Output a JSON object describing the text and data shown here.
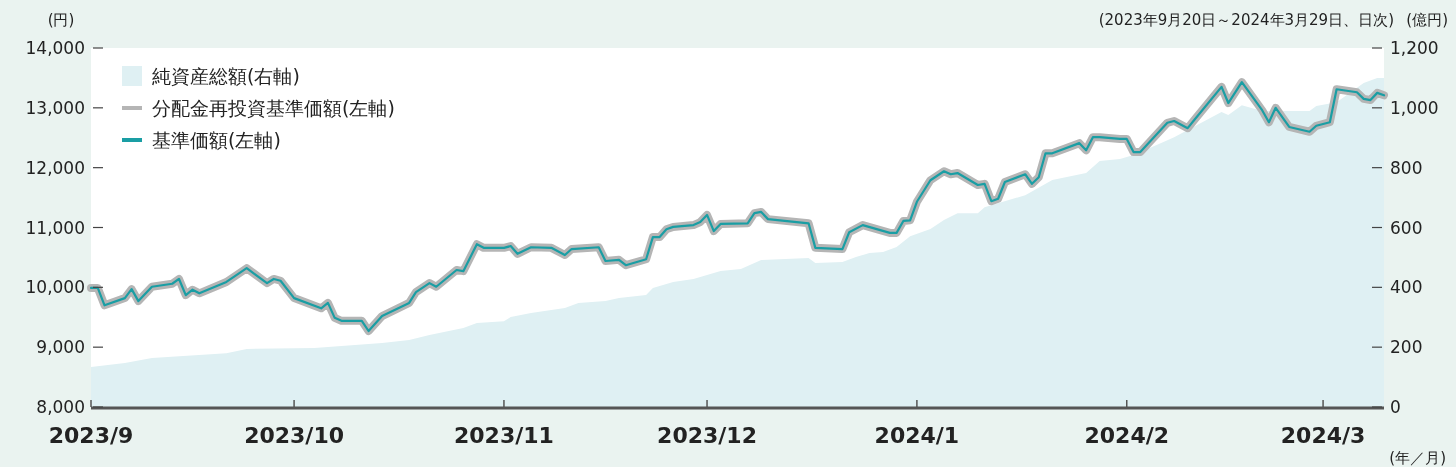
{
  "chart_data": {
    "type": "line",
    "ylabel": "(円)",
    "y2label": "(億円)",
    "xlabel": "(年／月)",
    "annotations": [
      "(2023年9月20日～2024年3月29日、日次)"
    ],
    "xlim": [
      "2023-09-20",
      "2024-03-29"
    ],
    "xticks": [
      {
        "value": "2023-09-20",
        "label": "2023/9"
      },
      {
        "value": "2023-10-20",
        "label": "2023/10"
      },
      {
        "value": "2023-11-20",
        "label": "2023/11"
      },
      {
        "value": "2023-12-20",
        "label": "2023/12"
      },
      {
        "value": "2024-01-20",
        "label": "2024/1"
      },
      {
        "value": "2024-02-20",
        "label": "2024/2"
      },
      {
        "value": "2024-03-20",
        "label": "2024/3"
      }
    ],
    "ylim": [
      8000,
      14000
    ],
    "yticks": [
      {
        "value": 8000,
        "label": "8,000"
      },
      {
        "value": 9000,
        "label": "9,000"
      },
      {
        "value": 10000,
        "label": "10,000"
      },
      {
        "value": 11000,
        "label": "11,000"
      },
      {
        "value": 12000,
        "label": "12,000"
      },
      {
        "value": 13000,
        "label": "13,000"
      },
      {
        "value": 14000,
        "label": "14,000"
      }
    ],
    "y2lim": [
      0,
      1200
    ],
    "y2ticks": [
      0,
      200,
      400,
      600,
      800,
      {
        "value": 1000,
        "label": "1,000"
      },
      {
        "value": 1200,
        "label": "1,200"
      }
    ],
    "legend": "top left",
    "grid": false,
    "series": [
      {
        "name": "純資産総額(右軸)",
        "type": "area",
        "axis": "y2",
        "color": "#dff0f3",
        "x": [
          "2023-09-20",
          "2023-09-25",
          "2023-09-29",
          "2023-10-10",
          "2023-10-13",
          "2023-10-23",
          "2023-11-02",
          "2023-11-06",
          "2023-11-09",
          "2023-11-14",
          "2023-11-16",
          "2023-11-20",
          "2023-11-21",
          "2023-11-24",
          "2023-11-29",
          "2023-12-01",
          "2023-12-05",
          "2023-12-07",
          "2023-12-11",
          "2023-12-12",
          "2023-12-15",
          "2023-12-18",
          "2023-12-20",
          "2023-12-22",
          "2023-12-25",
          "2023-12-28",
          "2024-01-04",
          "2024-01-05",
          "2024-01-09",
          "2024-01-11",
          "2024-01-13",
          "2024-01-15",
          "2024-01-17",
          "2024-01-19",
          "2024-01-22",
          "2024-01-24",
          "2024-01-26",
          "2024-01-29",
          "2024-01-30",
          "2024-02-05",
          "2024-02-09",
          "2024-02-14",
          "2024-02-16",
          "2024-02-19",
          "2024-02-21",
          "2024-02-25",
          "2024-02-27",
          "2024-02-29",
          "2024-03-05",
          "2024-03-06",
          "2024-03-08",
          "2024-03-11",
          "2024-03-14",
          "2024-03-18",
          "2024-03-19",
          "2024-03-22",
          "2024-03-26",
          "2024-03-28",
          "2024-03-29"
        ],
        "values": [
          134,
          147,
          164,
          180,
          194,
          197,
          214,
          224,
          241,
          264,
          281,
          287,
          301,
          314,
          331,
          348,
          354,
          364,
          374,
          398,
          418,
          428,
          441,
          455,
          461,
          491,
          498,
          481,
          485,
          501,
          515,
          518,
          535,
          571,
          595,
          625,
          648,
          648,
          668,
          708,
          759,
          782,
          822,
          829,
          842,
          882,
          902,
          926,
          986,
          976,
          1009,
          989,
          989,
          989,
          1006,
          1019,
          1083,
          1100,
          1100
        ]
      },
      {
        "name": "分配金再投資基準価額(左軸)",
        "color": "#b5b5b5",
        "x": [
          "2023-09-20",
          "2023-09-21",
          "2023-09-22",
          "2023-09-25",
          "2023-09-26",
          "2023-09-27",
          "2023-09-29",
          "2023-10-02",
          "2023-10-03",
          "2023-10-04",
          "2023-10-05",
          "2023-10-06",
          "2023-10-10",
          "2023-10-13",
          "2023-10-16",
          "2023-10-17",
          "2023-10-18",
          "2023-10-20",
          "2023-10-24",
          "2023-10-25",
          "2023-10-26",
          "2023-10-27",
          "2023-10-30",
          "2023-10-31",
          "2023-11-02",
          "2023-11-06",
          "2023-11-07",
          "2023-11-09",
          "2023-11-10",
          "2023-11-13",
          "2023-11-14",
          "2023-11-16",
          "2023-11-17",
          "2023-11-20",
          "2023-11-21",
          "2023-11-22",
          "2023-11-24",
          "2023-11-27",
          "2023-11-29",
          "2023-11-30",
          "2023-12-04",
          "2023-12-05",
          "2023-12-07",
          "2023-12-08",
          "2023-12-11",
          "2023-12-12",
          "2023-12-13",
          "2023-12-14",
          "2023-12-15",
          "2023-12-18",
          "2023-12-19",
          "2023-12-20",
          "2023-12-21",
          "2023-12-22",
          "2023-12-26",
          "2023-12-27",
          "2023-12-28",
          "2023-12-29",
          "2024-01-04",
          "2024-01-05",
          "2024-01-09",
          "2024-01-10",
          "2024-01-12",
          "2024-01-16",
          "2024-01-17",
          "2024-01-18",
          "2024-01-19",
          "2024-01-20",
          "2024-01-22",
          "2024-01-24",
          "2024-01-25",
          "2024-01-26",
          "2024-01-29",
          "2024-01-30",
          "2024-01-31",
          "2024-02-01",
          "2024-02-02",
          "2024-02-05",
          "2024-02-06",
          "2024-02-07",
          "2024-02-08",
          "2024-02-09",
          "2024-02-13",
          "2024-02-14",
          "2024-02-15",
          "2024-02-16",
          "2024-02-19",
          "2024-02-20",
          "2024-02-21",
          "2024-02-22",
          "2024-02-26",
          "2024-02-27",
          "2024-02-29",
          "2024-03-01",
          "2024-03-05",
          "2024-03-06",
          "2024-03-08",
          "2024-03-11",
          "2024-03-12",
          "2024-03-13",
          "2024-03-15",
          "2024-03-18",
          "2024-03-19",
          "2024-03-21",
          "2024-03-22",
          "2024-03-25",
          "2024-03-26",
          "2024-03-27",
          "2024-03-28",
          "2024-03-29"
        ],
        "values": [
          9990,
          9990,
          9700,
          9820,
          9970,
          9770,
          10010,
          10060,
          10140,
          9870,
          9960,
          9900,
          10090,
          10320,
          10070,
          10140,
          10110,
          9820,
          9650,
          9740,
          9490,
          9440,
          9440,
          9270,
          9520,
          9740,
          9920,
          10070,
          10010,
          10290,
          10270,
          10720,
          10660,
          10660,
          10690,
          10560,
          10670,
          10660,
          10540,
          10640,
          10670,
          10440,
          10460,
          10370,
          10470,
          10840,
          10840,
          10970,
          11010,
          11040,
          11090,
          11210,
          10940,
          11060,
          11070,
          11240,
          11260,
          11140,
          11070,
          10660,
          10640,
          10920,
          11040,
          10910,
          10910,
          11110,
          11120,
          11430,
          11790,
          11940,
          11890,
          11910,
          11710,
          11730,
          11440,
          11480,
          11760,
          11890,
          11730,
          11840,
          12240,
          12240,
          12410,
          12290,
          12510,
          12510,
          12480,
          12480,
          12260,
          12260,
          12750,
          12780,
          12660,
          12800,
          13350,
          13080,
          13430,
          12960,
          12760,
          13000,
          12680,
          12600,
          12700,
          12760,
          13310,
          13260,
          13150,
          13130,
          13250,
          13210
        ]
      },
      {
        "name": "基準価額(左軸)",
        "color": "#1a9ea4",
        "x": [
          "2023-09-20",
          "2023-09-21",
          "2023-09-22",
          "2023-09-25",
          "2023-09-26",
          "2023-09-27",
          "2023-09-29",
          "2023-10-02",
          "2023-10-03",
          "2023-10-04",
          "2023-10-05",
          "2023-10-06",
          "2023-10-10",
          "2023-10-13",
          "2023-10-16",
          "2023-10-17",
          "2023-10-18",
          "2023-10-20",
          "2023-10-24",
          "2023-10-25",
          "2023-10-26",
          "2023-10-27",
          "2023-10-30",
          "2023-10-31",
          "2023-11-02",
          "2023-11-06",
          "2023-11-07",
          "2023-11-09",
          "2023-11-10",
          "2023-11-13",
          "2023-11-14",
          "2023-11-16",
          "2023-11-17",
          "2023-11-20",
          "2023-11-21",
          "2023-11-22",
          "2023-11-24",
          "2023-11-27",
          "2023-11-29",
          "2023-11-30",
          "2023-12-04",
          "2023-12-05",
          "2023-12-07",
          "2023-12-08",
          "2023-12-11",
          "2023-12-12",
          "2023-12-13",
          "2023-12-14",
          "2023-12-15",
          "2023-12-18",
          "2023-12-19",
          "2023-12-20",
          "2023-12-21",
          "2023-12-22",
          "2023-12-26",
          "2023-12-27",
          "2023-12-28",
          "2023-12-29",
          "2024-01-04",
          "2024-01-05",
          "2024-01-09",
          "2024-01-10",
          "2024-01-12",
          "2024-01-16",
          "2024-01-17",
          "2024-01-18",
          "2024-01-19",
          "2024-01-20",
          "2024-01-22",
          "2024-01-24",
          "2024-01-25",
          "2024-01-26",
          "2024-01-29",
          "2024-01-30",
          "2024-01-31",
          "2024-02-01",
          "2024-02-02",
          "2024-02-05",
          "2024-02-06",
          "2024-02-07",
          "2024-02-08",
          "2024-02-09",
          "2024-02-13",
          "2024-02-14",
          "2024-02-15",
          "2024-02-16",
          "2024-02-19",
          "2024-02-20",
          "2024-02-21",
          "2024-02-22",
          "2024-02-26",
          "2024-02-27",
          "2024-02-29",
          "2024-03-01",
          "2024-03-05",
          "2024-03-06",
          "2024-03-08",
          "2024-03-11",
          "2024-03-12",
          "2024-03-13",
          "2024-03-15",
          "2024-03-18",
          "2024-03-19",
          "2024-03-21",
          "2024-03-22",
          "2024-03-25",
          "2024-03-26",
          "2024-03-27",
          "2024-03-28",
          "2024-03-29"
        ],
        "values": [
          9990,
          9990,
          9700,
          9820,
          9970,
          9770,
          10010,
          10060,
          10140,
          9870,
          9960,
          9900,
          10090,
          10320,
          10070,
          10140,
          10110,
          9820,
          9650,
          9740,
          9490,
          9440,
          9440,
          9270,
          9520,
          9740,
          9920,
          10070,
          10010,
          10290,
          10270,
          10720,
          10660,
          10660,
          10690,
          10560,
          10670,
          10660,
          10540,
          10640,
          10670,
          10440,
          10460,
          10370,
          10470,
          10840,
          10840,
          10970,
          11010,
          11040,
          11090,
          11210,
          10940,
          11060,
          11070,
          11240,
          11260,
          11140,
          11070,
          10660,
          10640,
          10920,
          11040,
          10910,
          10910,
          11110,
          11120,
          11430,
          11790,
          11940,
          11890,
          11910,
          11710,
          11730,
          11440,
          11480,
          11760,
          11890,
          11730,
          11840,
          12240,
          12240,
          12410,
          12290,
          12510,
          12510,
          12480,
          12480,
          12260,
          12260,
          12750,
          12780,
          12660,
          12800,
          13350,
          13080,
          13430,
          12960,
          12760,
          13000,
          12680,
          12600,
          12700,
          12760,
          13310,
          13260,
          13150,
          13130,
          13250,
          13210
        ]
      }
    ]
  }
}
